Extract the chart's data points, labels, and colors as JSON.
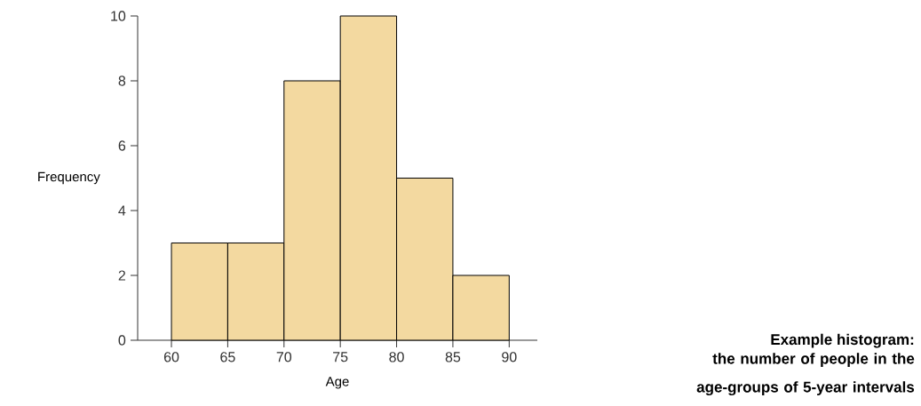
{
  "chart_data": {
    "type": "histogram",
    "xlabel": "Age",
    "ylabel": "Frequency",
    "bins": [
      60,
      65,
      70,
      75,
      80,
      85,
      90
    ],
    "values": [
      3,
      3,
      8,
      10,
      5,
      2
    ],
    "color": "#f3d9a0",
    "xlim": [
      57,
      92.5
    ],
    "ylim": [
      0,
      10
    ],
    "xticks": [
      60,
      65,
      70,
      75,
      80,
      85,
      90
    ],
    "yticks": [
      0,
      2,
      4,
      6,
      8,
      10
    ],
    "annotations": [
      "Example histogram:",
      "the number of people in the age-groups of 5-year intervals"
    ]
  }
}
